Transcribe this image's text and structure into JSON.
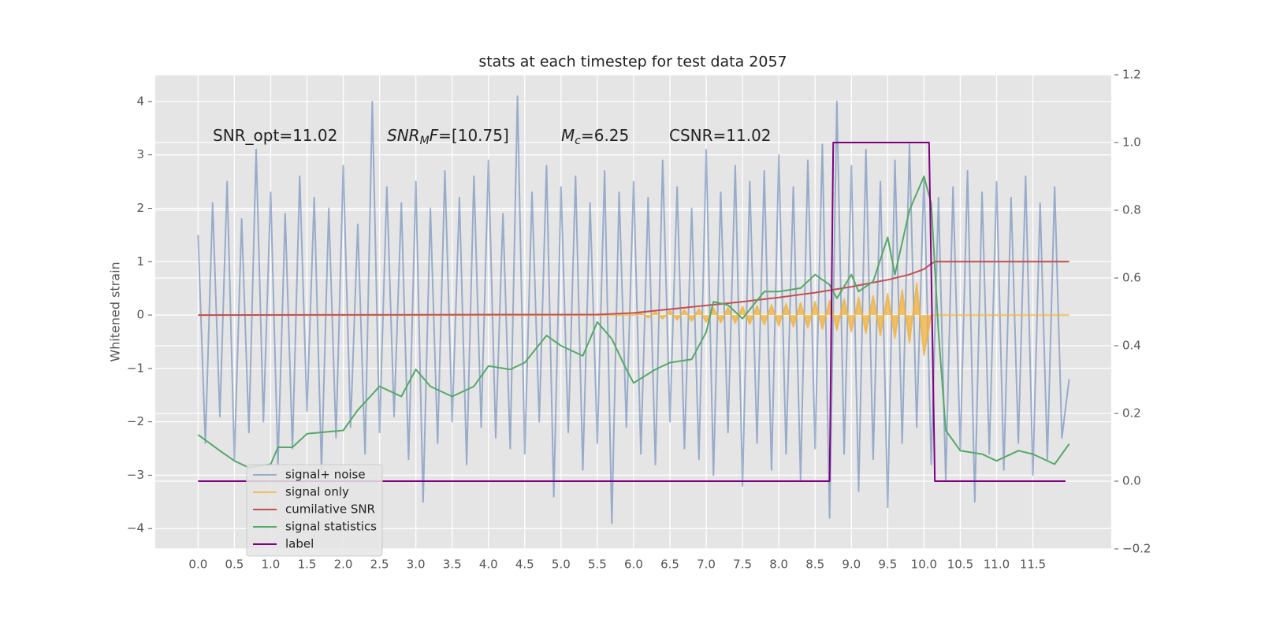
{
  "chart_data": {
    "type": "line",
    "title": "stats at each timestep for test data 2057",
    "ylabel": "Whitened strain",
    "grid": true,
    "legend": "lower left",
    "xlim": [
      -0.59,
      12.58
    ],
    "ylim": [
      -4.38,
      4.5
    ],
    "y2lim": [
      -0.2,
      1.2
    ],
    "xticks": [
      {
        "value": 0,
        "label": "0.0"
      },
      0.5,
      {
        "value": 1,
        "label": "1.0"
      },
      1.5,
      {
        "value": 2,
        "label": "2.0"
      },
      2.5,
      {
        "value": 3,
        "label": "3.0"
      },
      3.5,
      {
        "value": 4,
        "label": "4.0"
      },
      4.5,
      {
        "value": 5,
        "label": "5.0"
      },
      5.5,
      {
        "value": 6,
        "label": "6.0"
      },
      6.5,
      {
        "value": 7,
        "label": "7.0"
      },
      7.5,
      {
        "value": 8,
        "label": "8.0"
      },
      8.5,
      {
        "value": 9,
        "label": "9.0"
      },
      9.5,
      {
        "value": 10,
        "label": "10.0"
      },
      10.5,
      {
        "value": 11,
        "label": "11.0"
      },
      11.5
    ],
    "yticks": [
      {
        "value": -4,
        "label": "−4"
      },
      {
        "value": -3,
        "label": "−3"
      },
      {
        "value": -2,
        "label": "−2"
      },
      {
        "value": -1,
        "label": "−1"
      },
      0,
      1,
      2,
      3,
      4
    ],
    "y2ticks": [
      {
        "value": -0.2,
        "label": "−0.2"
      },
      {
        "value": 0,
        "label": "0.0"
      },
      0.2,
      0.4,
      0.6,
      0.8,
      {
        "value": 1,
        "label": "1.0"
      },
      1.2
    ],
    "annotations": [
      [
        {
          "t": "SNR_opt=11.02",
          "s": ""
        }
      ],
      [
        {
          "t": "SNR",
          "s": "i"
        },
        {
          "t": "M",
          "s": "sub"
        },
        {
          "t": "F",
          "s": "i"
        },
        {
          "t": "=[10.75]",
          "s": ""
        }
      ],
      [
        {
          "t": "M",
          "s": "i"
        },
        {
          "t": "c",
          "s": "sub"
        },
        {
          "t": "=6.25",
          "s": ""
        }
      ],
      [
        {
          "t": "CSNR=11.02",
          "s": ""
        }
      ]
    ],
    "x": [
      0,
      0.1,
      0.2,
      0.3,
      0.4,
      0.5,
      0.6,
      0.7,
      0.8,
      0.9,
      1,
      1.1,
      1.2,
      1.3,
      1.4,
      1.5,
      1.6,
      1.7,
      1.8,
      1.9,
      2,
      2.1,
      2.2,
      2.3,
      2.4,
      2.5,
      2.6,
      2.7,
      2.8,
      2.9,
      3,
      3.1,
      3.2,
      3.3,
      3.4,
      3.5,
      3.6,
      3.7,
      3.8,
      3.9,
      4,
      4.1,
      4.2,
      4.3,
      4.4,
      4.5,
      4.6,
      4.7,
      4.8,
      4.9,
      5,
      5.1,
      5.2,
      5.3,
      5.4,
      5.5,
      5.6,
      5.7,
      5.8,
      5.9,
      6,
      6.1,
      6.2,
      6.3,
      6.4,
      6.5,
      6.6,
      6.7,
      6.8,
      6.9,
      7,
      7.1,
      7.2,
      7.3,
      7.4,
      7.5,
      7.6,
      7.7,
      7.8,
      7.9,
      8,
      8.1,
      8.2,
      8.3,
      8.4,
      8.5,
      8.6,
      8.7,
      8.8,
      8.9,
      9,
      9.1,
      9.2,
      9.3,
      9.4,
      9.5,
      9.6,
      9.7,
      9.8,
      9.9,
      10,
      10.1,
      10.2,
      10.3,
      10.4,
      10.5,
      10.6,
      10.7,
      10.8,
      10.9,
      11,
      11.1,
      11.2,
      11.3,
      11.4,
      11.5,
      11.6,
      11.7,
      11.8,
      11.9,
      12
    ],
    "series": [
      {
        "name": "signal+ noise",
        "color": "#4c72b0",
        "alpha": 0.5,
        "values": [
          1.5,
          -2.4,
          2.1,
          -1.9,
          2.5,
          -2.7,
          1.8,
          -2.2,
          3.1,
          -2.0,
          2.3,
          -2.8,
          1.9,
          -2.5,
          2.6,
          -1.8,
          2.2,
          -2.9,
          2.0,
          -2.3,
          2.8,
          -2.1,
          1.7,
          -2.6,
          4.0,
          -2.2,
          2.4,
          -1.9,
          2.1,
          -2.7,
          2.5,
          -3.5,
          2.0,
          -2.4,
          2.7,
          -2.0,
          2.2,
          -2.8,
          2.6,
          -2.1,
          2.9,
          -2.3,
          1.9,
          -2.5,
          4.1,
          -2.6,
          2.3,
          -2.0,
          2.8,
          -3.4,
          2.4,
          -2.2,
          2.6,
          -2.9,
          2.1,
          -2.4,
          2.7,
          -3.9,
          2.3,
          -2.1,
          2.5,
          -2.6,
          2.2,
          -2.8,
          2.9,
          -2.0,
          2.4,
          -2.5,
          2.0,
          -2.7,
          3.1,
          -3.0,
          2.3,
          -2.2,
          2.8,
          -3.2,
          2.5,
          -2.4,
          2.7,
          -2.9,
          3.0,
          -2.6,
          2.4,
          -3.1,
          2.9,
          -2.5,
          3.2,
          -3.8,
          4.0,
          -2.6,
          2.8,
          -3.3,
          3.1,
          -2.7,
          2.5,
          -3.6,
          2.9,
          -2.4,
          3.2,
          -2.1,
          2.6,
          -2.8,
          2.2,
          -3.1,
          2.4,
          -2.5,
          2.7,
          -3.5,
          2.3,
          -2.6,
          2.5,
          -2.9,
          2.2,
          -2.4,
          2.6,
          -3.0,
          2.1,
          -2.7,
          2.4,
          -2.3,
          -1.2
        ]
      },
      {
        "name": "signal only",
        "color": "#f0b13c",
        "alpha": 0.75,
        "fill": true,
        "values": [
          0,
          0,
          0,
          0,
          0,
          0,
          0,
          0,
          0,
          0,
          0,
          0,
          0,
          0,
          0,
          0,
          0,
          0,
          0,
          0,
          0,
          0,
          0,
          0,
          0,
          0,
          0,
          0,
          0,
          0,
          0,
          0,
          0,
          0,
          0,
          0,
          0,
          0,
          0,
          0,
          0,
          0,
          0,
          0,
          0,
          0,
          0,
          0,
          0,
          0,
          0,
          0,
          0,
          0,
          0,
          0,
          0,
          0,
          0,
          0,
          0,
          0.04,
          -0.05,
          0.06,
          -0.07,
          0.08,
          -0.09,
          0.1,
          -0.11,
          0.12,
          -0.13,
          0.13,
          -0.14,
          0.14,
          -0.15,
          0.16,
          -0.17,
          0.17,
          -0.18,
          0.19,
          -0.2,
          0.21,
          -0.22,
          0.23,
          -0.24,
          0.25,
          -0.26,
          0.27,
          -0.28,
          0.3,
          -0.31,
          0.33,
          -0.34,
          0.36,
          -0.38,
          0.4,
          -0.43,
          0.47,
          -0.52,
          0.6,
          -0.75,
          0,
          0,
          0,
          0,
          0,
          0,
          0,
          0,
          0,
          0,
          0,
          0,
          0,
          0,
          0,
          0,
          0,
          0,
          0,
          0
        ]
      },
      {
        "name": "cumilative SNR",
        "color": "#c44e52",
        "x": [
          0,
          5.5,
          6.0,
          6.5,
          7.0,
          7.5,
          8.0,
          8.5,
          9.0,
          9.5,
          9.8,
          10.0,
          10.1,
          10.15,
          12.0
        ],
        "values": [
          0,
          0.01,
          0.04,
          0.11,
          0.18,
          0.25,
          0.33,
          0.42,
          0.53,
          0.66,
          0.76,
          0.86,
          0.96,
          1.0,
          1.0
        ]
      },
      {
        "name": "signal statistics",
        "color": "#55a868",
        "axis": "y2",
        "x": [
          0,
          0.3,
          0.5,
          0.7,
          1.0,
          1.1,
          1.3,
          1.5,
          2.0,
          2.2,
          2.5,
          2.8,
          3.0,
          3.2,
          3.5,
          3.8,
          4.0,
          4.3,
          4.5,
          4.8,
          5.0,
          5.3,
          5.5,
          5.7,
          5.9,
          6.0,
          6.3,
          6.5,
          6.8,
          7.0,
          7.1,
          7.3,
          7.5,
          7.8,
          8.0,
          8.3,
          8.5,
          8.7,
          8.8,
          9.0,
          9.1,
          9.3,
          9.5,
          9.6,
          9.8,
          10.0,
          10.1,
          10.2,
          10.3,
          10.5,
          10.8,
          11.0,
          11.3,
          11.5,
          11.8,
          12.0
        ],
        "values": [
          0.137,
          0.09,
          0.06,
          0.04,
          0.05,
          0.1,
          0.1,
          0.14,
          0.15,
          0.21,
          0.28,
          0.25,
          0.33,
          0.28,
          0.25,
          0.28,
          0.34,
          0.33,
          0.35,
          0.43,
          0.4,
          0.37,
          0.47,
          0.42,
          0.33,
          0.29,
          0.33,
          0.35,
          0.36,
          0.44,
          0.53,
          0.52,
          0.48,
          0.56,
          0.56,
          0.57,
          0.61,
          0.58,
          0.54,
          0.61,
          0.56,
          0.59,
          0.72,
          0.61,
          0.8,
          0.9,
          0.82,
          0.44,
          0.15,
          0.09,
          0.08,
          0.06,
          0.09,
          0.08,
          0.05,
          0.11
        ]
      },
      {
        "name": "label",
        "color": "#800080",
        "axis": "y2",
        "x": [
          0,
          8.7,
          8.75,
          10.07,
          10.15,
          11.95
        ],
        "values": [
          0,
          0,
          1,
          1,
          0,
          0
        ]
      }
    ]
  }
}
